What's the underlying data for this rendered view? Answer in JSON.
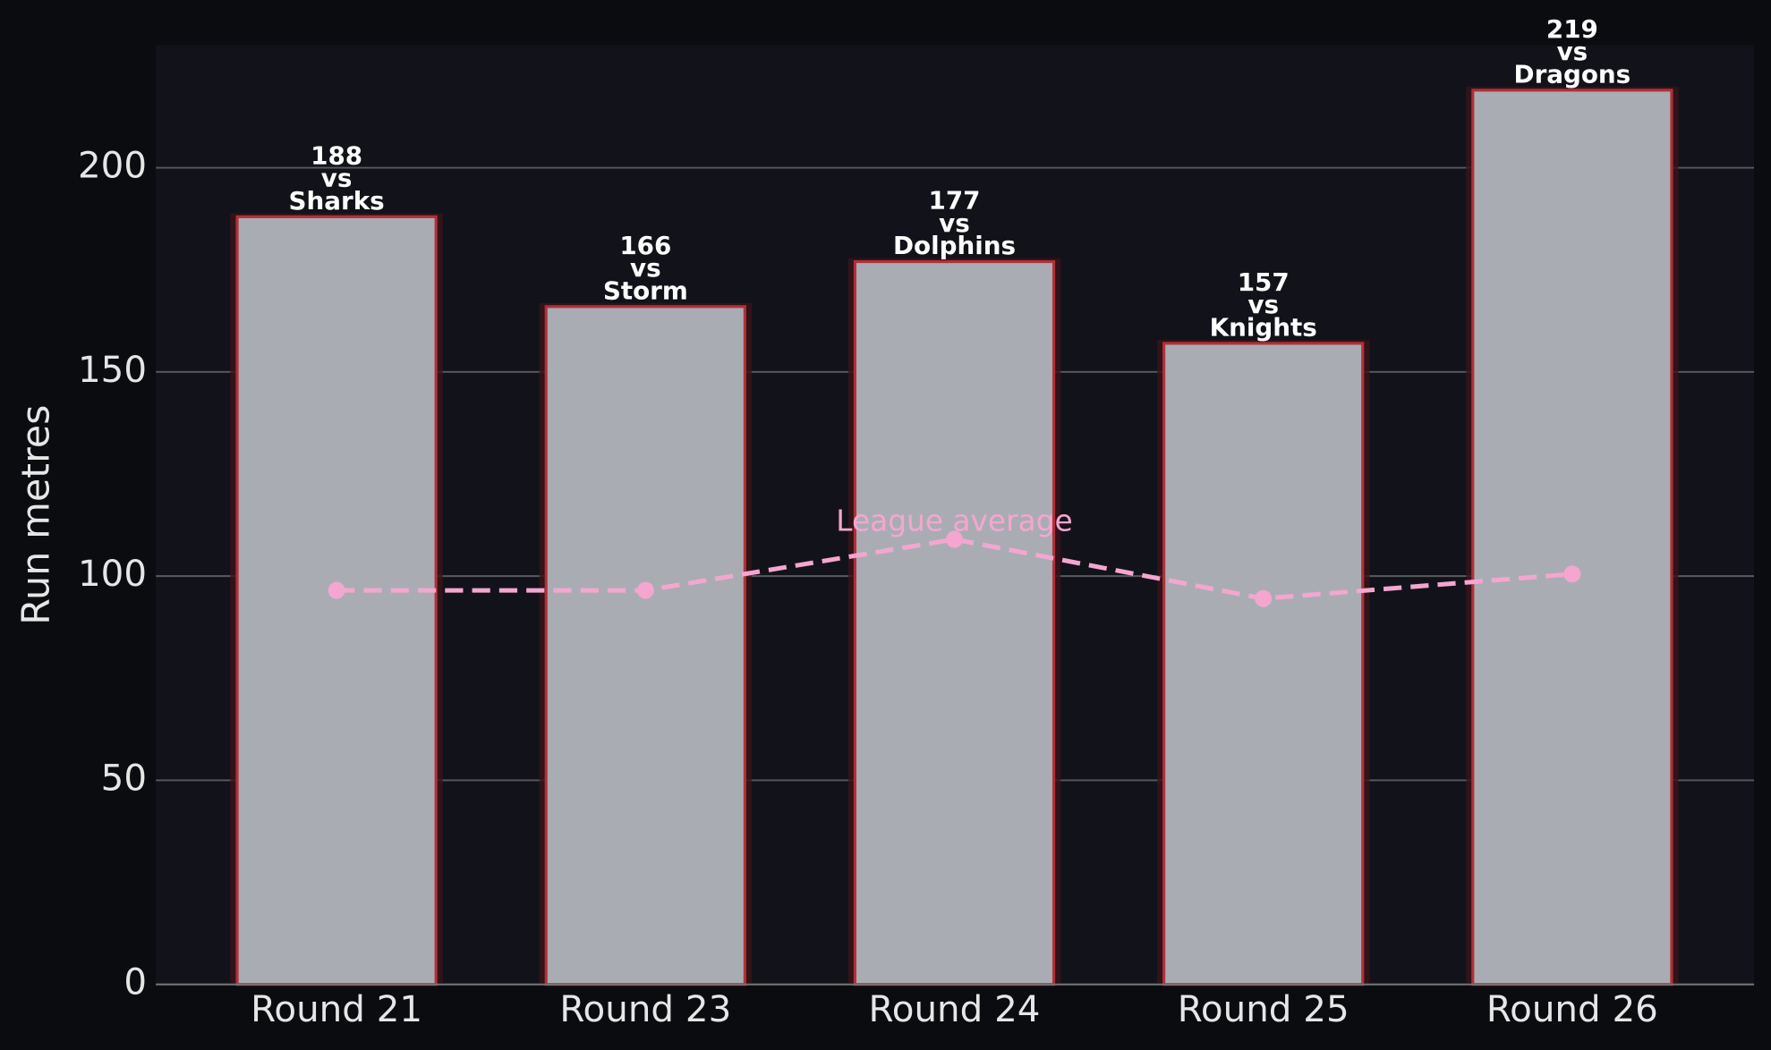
{
  "chart_data": {
    "type": "bar",
    "ylabel": "Run metres",
    "categories": [
      "Round 21",
      "Round 23",
      "Round 24",
      "Round 25",
      "Round 26"
    ],
    "values": [
      188,
      166,
      177,
      157,
      219
    ],
    "value_labels": [
      "188\nvs\nSharks",
      "166\nvs\nStorm",
      "177\nvs\nDolphins",
      "157\nvs\nKnights",
      "219\nvs\nDragons"
    ],
    "color": "#a9adb3",
    "edgecolor": "#b0303a",
    "line": {
      "name": "League average",
      "values": [
        96.5,
        96.5,
        109,
        94.5,
        100.5
      ],
      "color": "#f4a6d0"
    },
    "ylim": [
      0,
      230
    ],
    "yticks": [
      0,
      50,
      100,
      150,
      200
    ],
    "grid": true
  }
}
